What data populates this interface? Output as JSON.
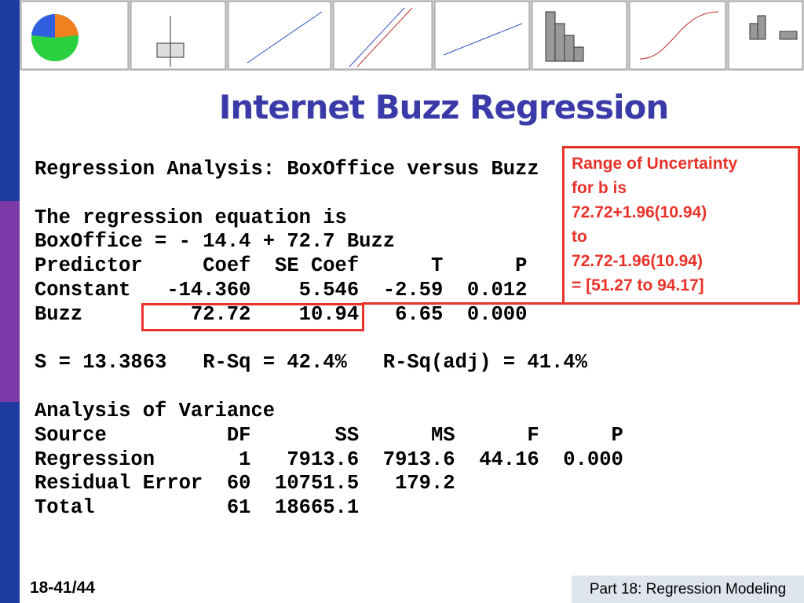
{
  "title": "Internet Buzz Regression",
  "output": [
    "Regression Analysis: BoxOffice versus Buzz",
    "The regression equation is",
    "BoxOffice = - 14.4 + 72.7 Buzz",
    "Predictor     Coef  SE Coef      T      P",
    "Constant   -14.360    5.546  -2.59  0.012",
    "Buzz         72.72    10.94   6.65  0.000",
    "S = 13.3863   R-Sq = 42.4%   R-Sq(adj) = 41.4%",
    "Analysis of Variance",
    "Source          DF       SS      MS      F      P",
    "Regression       1   7913.6  7913.6  44.16  0.000",
    "Residual Error  60  10751.5   179.2",
    "Total           61  18665.1"
  ],
  "callout": [
    "Range of Uncertainty",
    "for b is",
    "72.72+1.96(10.94)",
    "to",
    "72.72-1.96(10.94)",
    "= [51.27 to 94.17]"
  ],
  "footer": {
    "page": "18-41/44",
    "section": "Part 18: Regression Modeling"
  }
}
